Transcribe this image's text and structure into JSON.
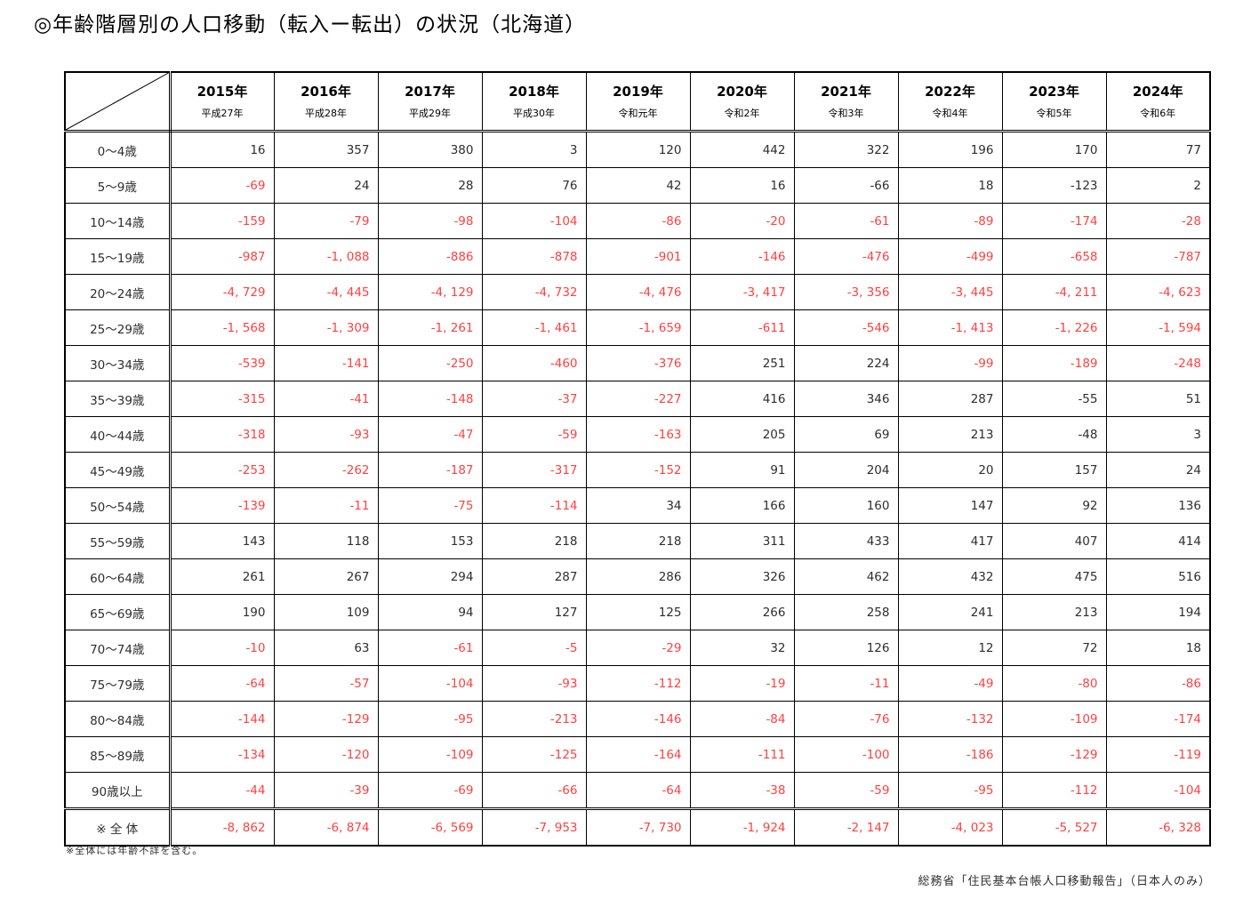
{
  "title": "◎年齢階層別の人口移動（転入ー転出）の状況（北海道）",
  "note": "※全体には年齢不詳を含む。",
  "source": "総務省「住民基本台帳人口移動報告」（日本人のみ）",
  "colors": {
    "negative_text": "#ff4040",
    "normal_text": "#2e2e2e",
    "border": "#000000"
  },
  "table": {
    "columns": [
      {
        "year": "2015年",
        "era": "平成27年"
      },
      {
        "year": "2016年",
        "era": "平成28年"
      },
      {
        "year": "2017年",
        "era": "平成29年"
      },
      {
        "year": "2018年",
        "era": "平成30年"
      },
      {
        "year": "2019年",
        "era": "令和元年"
      },
      {
        "year": "2020年",
        "era": "令和2年"
      },
      {
        "year": "2021年",
        "era": "令和3年"
      },
      {
        "year": "2022年",
        "era": "令和4年"
      },
      {
        "year": "2023年",
        "era": "令和5年"
      },
      {
        "year": "2024年",
        "era": "令和6年"
      }
    ],
    "rows": [
      {
        "label": "0〜4歳",
        "values": [
          "16",
          "357",
          "380",
          "3",
          "120",
          "442",
          "322",
          "196",
          "170",
          "77"
        ]
      },
      {
        "label": "5〜9歳",
        "values": [
          "-69",
          "24",
          "28",
          "76",
          "42",
          "16",
          "-66",
          "18",
          "-123",
          "2"
        ]
      },
      {
        "label": "10〜14歳",
        "values": [
          "-159",
          "-79",
          "-98",
          "-104",
          "-86",
          "-20",
          "-61",
          "-89",
          "-174",
          "-28"
        ]
      },
      {
        "label": "15〜19歳",
        "values": [
          "-987",
          "-1, 088",
          "-886",
          "-878",
          "-901",
          "-146",
          "-476",
          "-499",
          "-658",
          "-787"
        ]
      },
      {
        "label": "20〜24歳",
        "values": [
          "-4, 729",
          "-4, 445",
          "-4, 129",
          "-4, 732",
          "-4, 476",
          "-3, 417",
          "-3, 356",
          "-3, 445",
          "-4, 211",
          "-4, 623"
        ]
      },
      {
        "label": "25〜29歳",
        "values": [
          "-1, 568",
          "-1, 309",
          "-1, 261",
          "-1, 461",
          "-1, 659",
          "-611",
          "-546",
          "-1, 413",
          "-1, 226",
          "-1, 594"
        ]
      },
      {
        "label": "30〜34歳",
        "values": [
          "-539",
          "-141",
          "-250",
          "-460",
          "-376",
          "251",
          "224",
          "-99",
          "-189",
          "-248"
        ]
      },
      {
        "label": "35〜39歳",
        "values": [
          "-315",
          "-41",
          "-148",
          "-37",
          "-227",
          "416",
          "346",
          "287",
          "-55",
          "51"
        ]
      },
      {
        "label": "40〜44歳",
        "values": [
          "-318",
          "-93",
          "-47",
          "-59",
          "-163",
          "205",
          "69",
          "213",
          "-48",
          "3"
        ]
      },
      {
        "label": "45〜49歳",
        "values": [
          "-253",
          "-262",
          "-187",
          "-317",
          "-152",
          "91",
          "204",
          "20",
          "157",
          "24"
        ]
      },
      {
        "label": "50〜54歳",
        "values": [
          "-139",
          "-11",
          "-75",
          "-114",
          "34",
          "166",
          "160",
          "147",
          "92",
          "136"
        ]
      },
      {
        "label": "55〜59歳",
        "values": [
          "143",
          "118",
          "153",
          "218",
          "218",
          "311",
          "433",
          "417",
          "407",
          "414"
        ]
      },
      {
        "label": "60〜64歳",
        "values": [
          "261",
          "267",
          "294",
          "287",
          "286",
          "326",
          "462",
          "432",
          "475",
          "516"
        ]
      },
      {
        "label": "65〜69歳",
        "values": [
          "190",
          "109",
          "94",
          "127",
          "125",
          "266",
          "258",
          "241",
          "213",
          "194"
        ]
      },
      {
        "label": "70〜74歳",
        "values": [
          "-10",
          "63",
          "-61",
          "-5",
          "-29",
          "32",
          "126",
          "12",
          "72",
          "18"
        ]
      },
      {
        "label": "75〜79歳",
        "values": [
          "-64",
          "-57",
          "-104",
          "-93",
          "-112",
          "-19",
          "-11",
          "-49",
          "-80",
          "-86"
        ]
      },
      {
        "label": "80〜84歳",
        "values": [
          "-144",
          "-129",
          "-95",
          "-213",
          "-146",
          "-84",
          "-76",
          "-132",
          "-109",
          "-174"
        ]
      },
      {
        "label": "85〜89歳",
        "values": [
          "-134",
          "-120",
          "-109",
          "-125",
          "-164",
          "-111",
          "-100",
          "-186",
          "-129",
          "-119"
        ]
      },
      {
        "label": "90歳以上",
        "values": [
          "-44",
          "-39",
          "-69",
          "-66",
          "-64",
          "-38",
          "-59",
          "-95",
          "-112",
          "-104"
        ]
      },
      {
        "label": "※ 全 体",
        "values": [
          "-8, 862",
          "-6, 874",
          "-6, 569",
          "-7, 953",
          "-7, 730",
          "-1, 924",
          "-2, 147",
          "-4, 023",
          "-5, 527",
          "-6, 328"
        ],
        "is_total": true
      }
    ],
    "black_negative_cells": [
      [
        1,
        6
      ],
      [
        1,
        8
      ],
      [
        7,
        8
      ],
      [
        8,
        8
      ]
    ]
  }
}
